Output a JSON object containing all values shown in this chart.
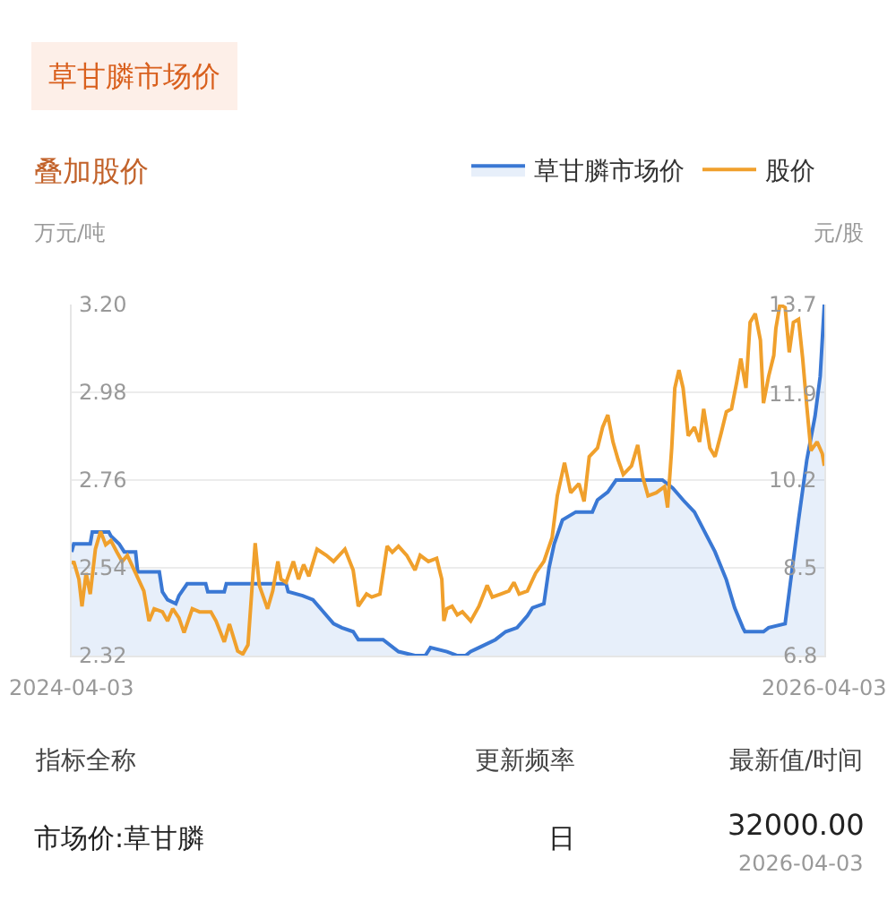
{
  "chart_data": {
    "type": "line",
    "title": "草甘膦市场价",
    "subtitle": "叠加股价",
    "ylabel": "万元/吨",
    "y2label": "元/股",
    "xlim": [
      "2024-04-03",
      "2026-04-03"
    ],
    "xticks": [
      "2024-04-03",
      "2026-04-03"
    ],
    "ylim": [
      2.32,
      3.2
    ],
    "yticks": [
      2.32,
      2.54,
      2.76,
      2.98,
      {
        "value": 3.2,
        "label": "3.20"
      }
    ],
    "y2lim": [
      6.8,
      13.7
    ],
    "y2ticks": [
      6.8,
      {
        "value": 8.525,
        "label": "8.5"
      },
      {
        "value": 10.25,
        "label": "10.2"
      },
      {
        "value": 11.94,
        "label": "11.9"
      },
      13.7
    ],
    "grid": "y",
    "legend": "top right",
    "marker": "none",
    "series": [
      {
        "name": "草甘膦市场价",
        "type": "area",
        "color": "#3a78d4",
        "x": [
          "2024-04-03",
          "2024-04-05",
          "2024-04-21",
          "2024-04-23",
          "2024-05-09",
          "2024-05-11",
          "2024-05-19",
          "2024-05-24",
          "2024-06-04",
          "2024-06-06",
          "2024-06-27",
          "2024-06-30",
          "2024-07-05",
          "2024-07-13",
          "2024-07-16",
          "2024-07-24",
          "2024-08-11",
          "2024-08-13",
          "2024-08-29",
          "2024-08-31",
          "2024-10-28",
          "2024-10-30",
          "2024-11-13",
          "2024-11-23",
          "2024-12-03",
          "2024-12-13",
          "2024-12-21",
          "2025-01-01",
          "2025-01-06",
          "2025-01-30",
          "2025-02-14",
          "2025-03-02",
          "2025-03-12",
          "2025-03-17",
          "2025-04-02",
          "2025-04-12",
          "2025-04-20",
          "2025-04-25",
          "2025-05-03",
          "2025-05-19",
          "2025-05-29",
          "2025-06-09",
          "2025-06-19",
          "2025-06-24",
          "2025-07-05",
          "2025-07-10",
          "2025-07-15",
          "2025-07-23",
          "2025-08-05",
          "2025-08-21",
          "2025-08-26",
          "2025-09-05",
          "2025-09-13",
          "2025-09-26",
          "2025-10-28",
          "2025-11-07",
          "2025-11-17",
          "2025-11-28",
          "2025-12-08",
          "2025-12-18",
          "2025-12-29",
          "2026-01-06",
          "2026-01-14",
          "2026-01-16",
          "2026-02-03",
          "2026-02-08",
          "2026-02-24",
          "2026-03-01",
          "2026-03-09",
          "2026-03-17",
          "2026-03-25",
          "2026-03-30",
          "2026-04-03"
        ],
        "values": [
          2.58,
          2.6,
          2.6,
          2.63,
          2.63,
          2.62,
          2.6,
          2.58,
          2.58,
          2.53,
          2.53,
          2.48,
          2.46,
          2.45,
          2.47,
          2.5,
          2.5,
          2.48,
          2.48,
          2.5,
          2.5,
          2.48,
          2.47,
          2.46,
          2.43,
          2.4,
          2.39,
          2.38,
          2.36,
          2.36,
          2.33,
          2.32,
          2.32,
          2.34,
          2.33,
          2.32,
          2.32,
          2.33,
          2.34,
          2.36,
          2.38,
          2.39,
          2.42,
          2.44,
          2.45,
          2.54,
          2.6,
          2.66,
          2.68,
          2.68,
          2.71,
          2.73,
          2.76,
          2.76,
          2.76,
          2.74,
          2.71,
          2.68,
          2.63,
          2.58,
          2.51,
          2.44,
          2.39,
          2.38,
          2.38,
          2.39,
          2.4,
          2.5,
          2.66,
          2.81,
          2.92,
          3.02,
          3.2
        ]
      },
      {
        "name": "股价",
        "axis": "y2",
        "color": "#f0a02c",
        "x": [
          "2024-04-03",
          "2024-04-05",
          "2024-04-10",
          "2024-04-13",
          "2024-04-17",
          "2024-04-21",
          "2024-04-26",
          "2024-05-01",
          "2024-05-06",
          "2024-05-11",
          "2024-05-17",
          "2024-05-22",
          "2024-05-27",
          "2024-06-04",
          "2024-06-12",
          "2024-06-17",
          "2024-06-22",
          "2024-06-30",
          "2024-07-05",
          "2024-07-10",
          "2024-07-16",
          "2024-07-21",
          "2024-07-29",
          "2024-08-05",
          "2024-08-16",
          "2024-08-21",
          "2024-08-29",
          "2024-09-03",
          "2024-09-11",
          "2024-09-16",
          "2024-09-21",
          "2024-09-28",
          "2024-10-02",
          "2024-10-10",
          "2024-10-15",
          "2024-10-20",
          "2024-10-23",
          "2024-10-28",
          "2024-11-04",
          "2024-11-09",
          "2024-11-14",
          "2024-11-19",
          "2024-11-27",
          "2024-12-06",
          "2024-12-13",
          "2024-12-24",
          "2025-01-01",
          "2025-01-06",
          "2025-01-14",
          "2025-01-19",
          "2025-01-27",
          "2025-02-03",
          "2025-02-08",
          "2025-02-14",
          "2025-02-22",
          "2025-03-02",
          "2025-03-07",
          "2025-03-15",
          "2025-03-23",
          "2025-03-28",
          "2025-03-30",
          "2025-04-02",
          "2025-04-07",
          "2025-04-12",
          "2025-04-17",
          "2025-04-25",
          "2025-05-03",
          "2025-05-11",
          "2025-05-16",
          "2025-05-24",
          "2025-06-01",
          "2025-06-06",
          "2025-06-11",
          "2025-06-19",
          "2025-06-27",
          "2025-07-05",
          "2025-07-13",
          "2025-07-18",
          "2025-07-25",
          "2025-07-31",
          "2025-08-08",
          "2025-08-13",
          "2025-08-18",
          "2025-08-26",
          "2025-08-31",
          "2025-09-05",
          "2025-09-10",
          "2025-09-15",
          "2025-09-20",
          "2025-09-28",
          "2025-10-04",
          "2025-10-09",
          "2025-10-14",
          "2025-10-22",
          "2025-10-30",
          "2025-11-02",
          "2025-11-06",
          "2025-11-09",
          "2025-11-13",
          "2025-11-17",
          "2025-11-22",
          "2025-11-28",
          "2025-12-03",
          "2025-12-07",
          "2025-12-13",
          "2025-12-18",
          "2025-12-24",
          "2025-12-29",
          "2026-01-03",
          "2026-01-08",
          "2026-01-12",
          "2026-01-17",
          "2026-01-21",
          "2026-01-26",
          "2026-01-31",
          "2026-02-03",
          "2026-02-08",
          "2026-02-13",
          "2026-02-15",
          "2026-02-19",
          "2026-02-24",
          "2026-02-28",
          "2026-03-04",
          "2026-03-09",
          "2026-03-13",
          "2026-03-17",
          "2026-03-21",
          "2026-03-27",
          "2026-04-01",
          "2026-04-03"
        ],
        "values": [
          8.6,
          8.65,
          8.3,
          7.77,
          8.42,
          8.01,
          8.89,
          9.24,
          8.98,
          9.06,
          8.83,
          8.65,
          8.77,
          8.42,
          8.07,
          7.48,
          7.72,
          7.66,
          7.48,
          7.72,
          7.54,
          7.25,
          7.72,
          7.66,
          7.66,
          7.48,
          7.07,
          7.42,
          6.89,
          6.83,
          7.01,
          9.01,
          8.18,
          7.72,
          8.07,
          8.65,
          8.3,
          8.24,
          8.65,
          8.3,
          8.59,
          8.36,
          8.89,
          8.77,
          8.65,
          8.89,
          8.48,
          7.77,
          8.01,
          7.95,
          8.01,
          8.95,
          8.83,
          8.95,
          8.77,
          8.48,
          8.77,
          8.65,
          8.71,
          8.3,
          7.48,
          7.72,
          7.77,
          7.6,
          7.66,
          7.48,
          7.77,
          8.18,
          7.95,
          8.01,
          8.07,
          8.24,
          8.01,
          8.07,
          8.42,
          8.65,
          9.12,
          9.94,
          10.59,
          10.0,
          10.18,
          9.83,
          10.71,
          10.88,
          11.29,
          11.53,
          11.0,
          10.65,
          10.36,
          10.53,
          10.94,
          10.3,
          9.94,
          10.0,
          10.12,
          9.71,
          10.88,
          12.06,
          12.41,
          12.06,
          11.12,
          11.29,
          11.0,
          11.65,
          10.88,
          10.71,
          11.18,
          11.59,
          11.65,
          12.17,
          12.64,
          12.06,
          13.35,
          13.52,
          13.0,
          11.76,
          12.29,
          12.7,
          13.23,
          13.7,
          13.64,
          12.76,
          13.35,
          13.41,
          12.64,
          11.7,
          10.83,
          11.0,
          10.77,
          10.53
        ]
      }
    ],
    "annotations": [
      "指标全称",
      "更新频率",
      "最新值/时间",
      "市场价:草甘膦",
      "日",
      "32000.00",
      "2026-04-03"
    ]
  }
}
